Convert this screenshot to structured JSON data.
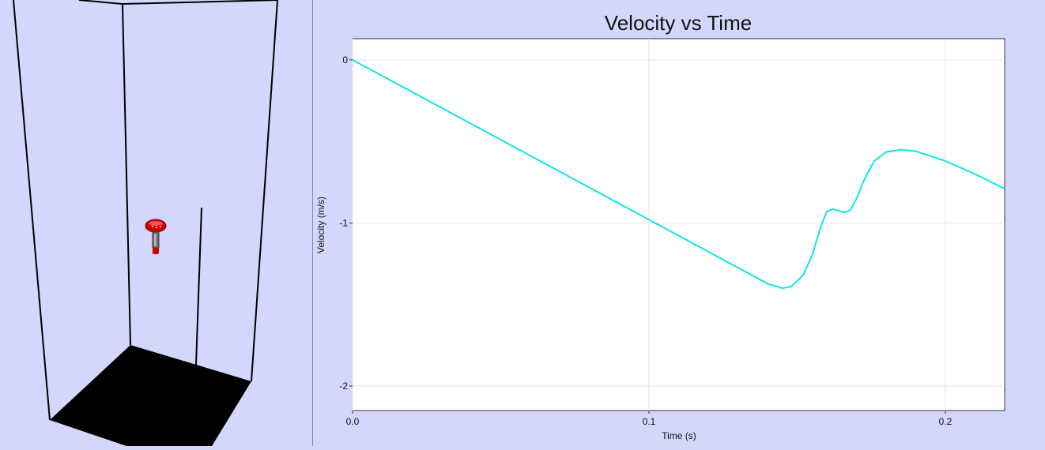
{
  "scene": {
    "floor_color": "#000000",
    "background_color": "#d3d7fb",
    "object_color": "#d40000",
    "object_icon": "drop-tester-icon"
  },
  "colors": {
    "plot_background": "#ffffff",
    "grid": "#e6e6e6",
    "axis": "#333333",
    "series": "#11e6e6"
  },
  "chart_data": {
    "type": "line",
    "title": "Velocity vs Time",
    "xlabel": "Time (s)",
    "ylabel": "Velocity (m/s)",
    "xlim": [
      0.0,
      0.22
    ],
    "ylim": [
      -2.15,
      0.13
    ],
    "xticks": [
      0.0,
      0.1,
      0.2
    ],
    "xtick_labels": [
      "0.0",
      "0.1",
      "0.2"
    ],
    "yticks": [
      0,
      -1,
      -2
    ],
    "ytick_labels": [
      "0",
      "-1",
      "-2"
    ],
    "grid": true,
    "legend": "none",
    "series": [
      {
        "x": [
          0.0,
          0.02,
          0.04,
          0.06,
          0.08,
          0.1,
          0.12,
          0.14,
          0.145,
          0.148,
          0.152,
          0.155,
          0.158,
          0.16,
          0.162,
          0.164,
          0.166,
          0.168,
          0.17,
          0.173,
          0.176,
          0.18,
          0.185,
          0.19,
          0.2,
          0.21,
          0.22
        ],
        "y": [
          0.0,
          -0.196,
          -0.392,
          -0.588,
          -0.784,
          -0.98,
          -1.176,
          -1.372,
          -1.4,
          -1.39,
          -1.32,
          -1.2,
          -1.02,
          -0.93,
          -0.915,
          -0.925,
          -0.935,
          -0.92,
          -0.85,
          -0.72,
          -0.62,
          -0.565,
          -0.55,
          -0.56,
          -0.62,
          -0.7,
          -0.79
        ]
      }
    ]
  }
}
